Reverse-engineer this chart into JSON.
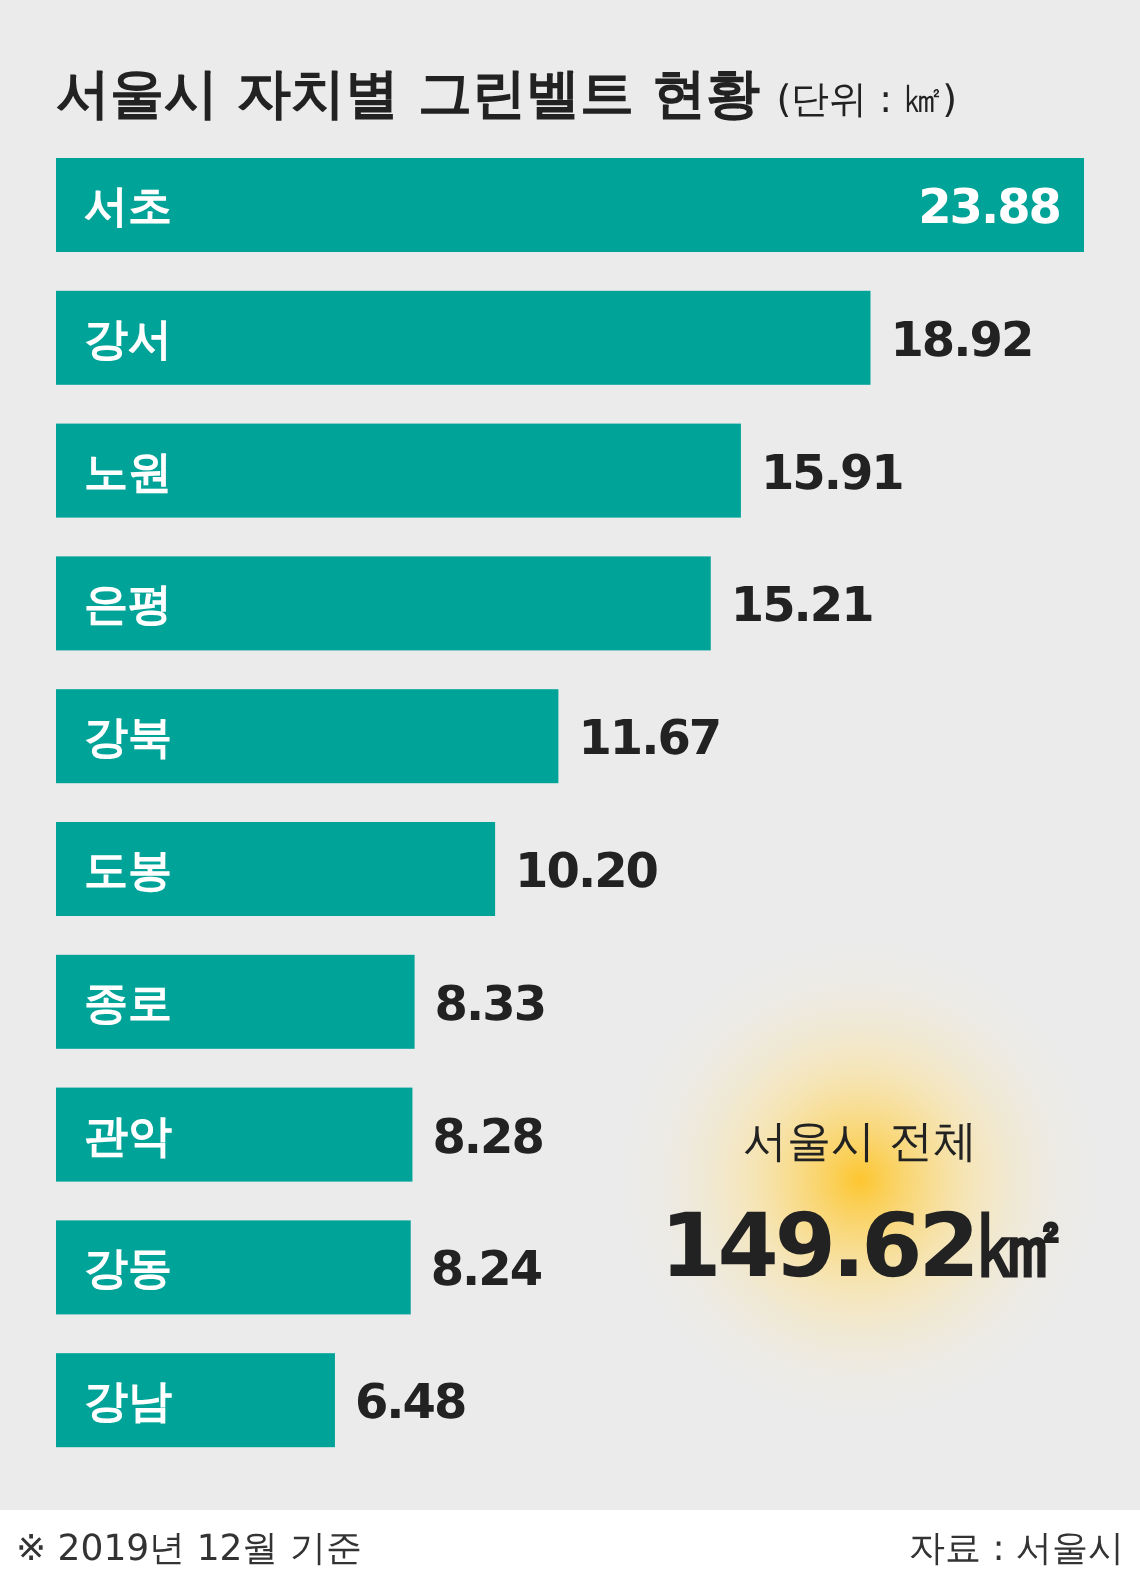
{
  "chart_data": {
    "type": "bar",
    "orientation": "horizontal",
    "title": "서울시 자치별 그린벨트 현황",
    "subtitle": "(단위 : ㎢)",
    "categories": [
      "서초",
      "강서",
      "노원",
      "은평",
      "강북",
      "도봉",
      "종로",
      "관악",
      "강동",
      "강남"
    ],
    "values": [
      23.88,
      18.92,
      15.91,
      15.21,
      11.67,
      10.2,
      8.33,
      8.28,
      8.24,
      6.48
    ],
    "color": "#00a398",
    "value_labels": [
      "23.88",
      "18.92",
      "15.91",
      "15.21",
      "11.67",
      "10.20",
      "8.33",
      "8.28",
      "8.24",
      "6.48"
    ],
    "annotations": [
      "서울시 전체",
      "149.62㎢",
      "※ 2019년 12월 기준",
      "자료 : 서울시"
    ]
  }
}
